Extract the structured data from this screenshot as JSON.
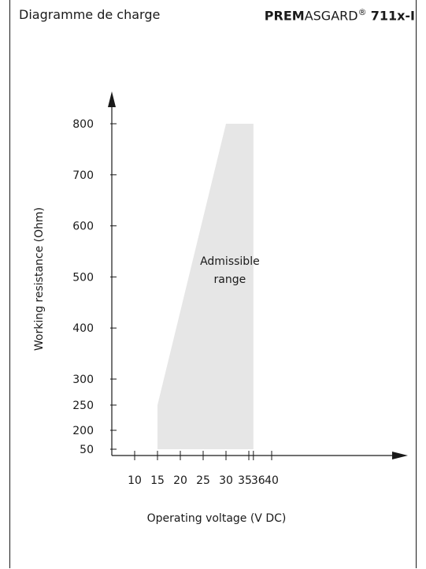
{
  "header": {
    "left_title": "Diagramme de charge",
    "brand_bold": "PREM",
    "brand_regular": "ASGARD",
    "brand_mark": "®",
    "model": "711x-I"
  },
  "chart_data": {
    "type": "area",
    "xlabel": "Operating voltage  (V DC)",
    "ylabel": "Working resistance  (Ohm)",
    "x_ticks": [
      10,
      15,
      20,
      25,
      30,
      35,
      36,
      40
    ],
    "y_ticks": [
      50,
      200,
      250,
      300,
      400,
      500,
      600,
      700,
      800
    ],
    "region": {
      "label_line1": "Admissible",
      "label_line2": "range",
      "points": [
        {
          "x": 15,
          "y": 50
        },
        {
          "x": 15,
          "y": 250
        },
        {
          "x": 30,
          "y": 800
        },
        {
          "x": 36,
          "y": 800
        },
        {
          "x": 36,
          "y": 50
        }
      ]
    },
    "fill_color": "#e6e6e6",
    "grid": false
  }
}
